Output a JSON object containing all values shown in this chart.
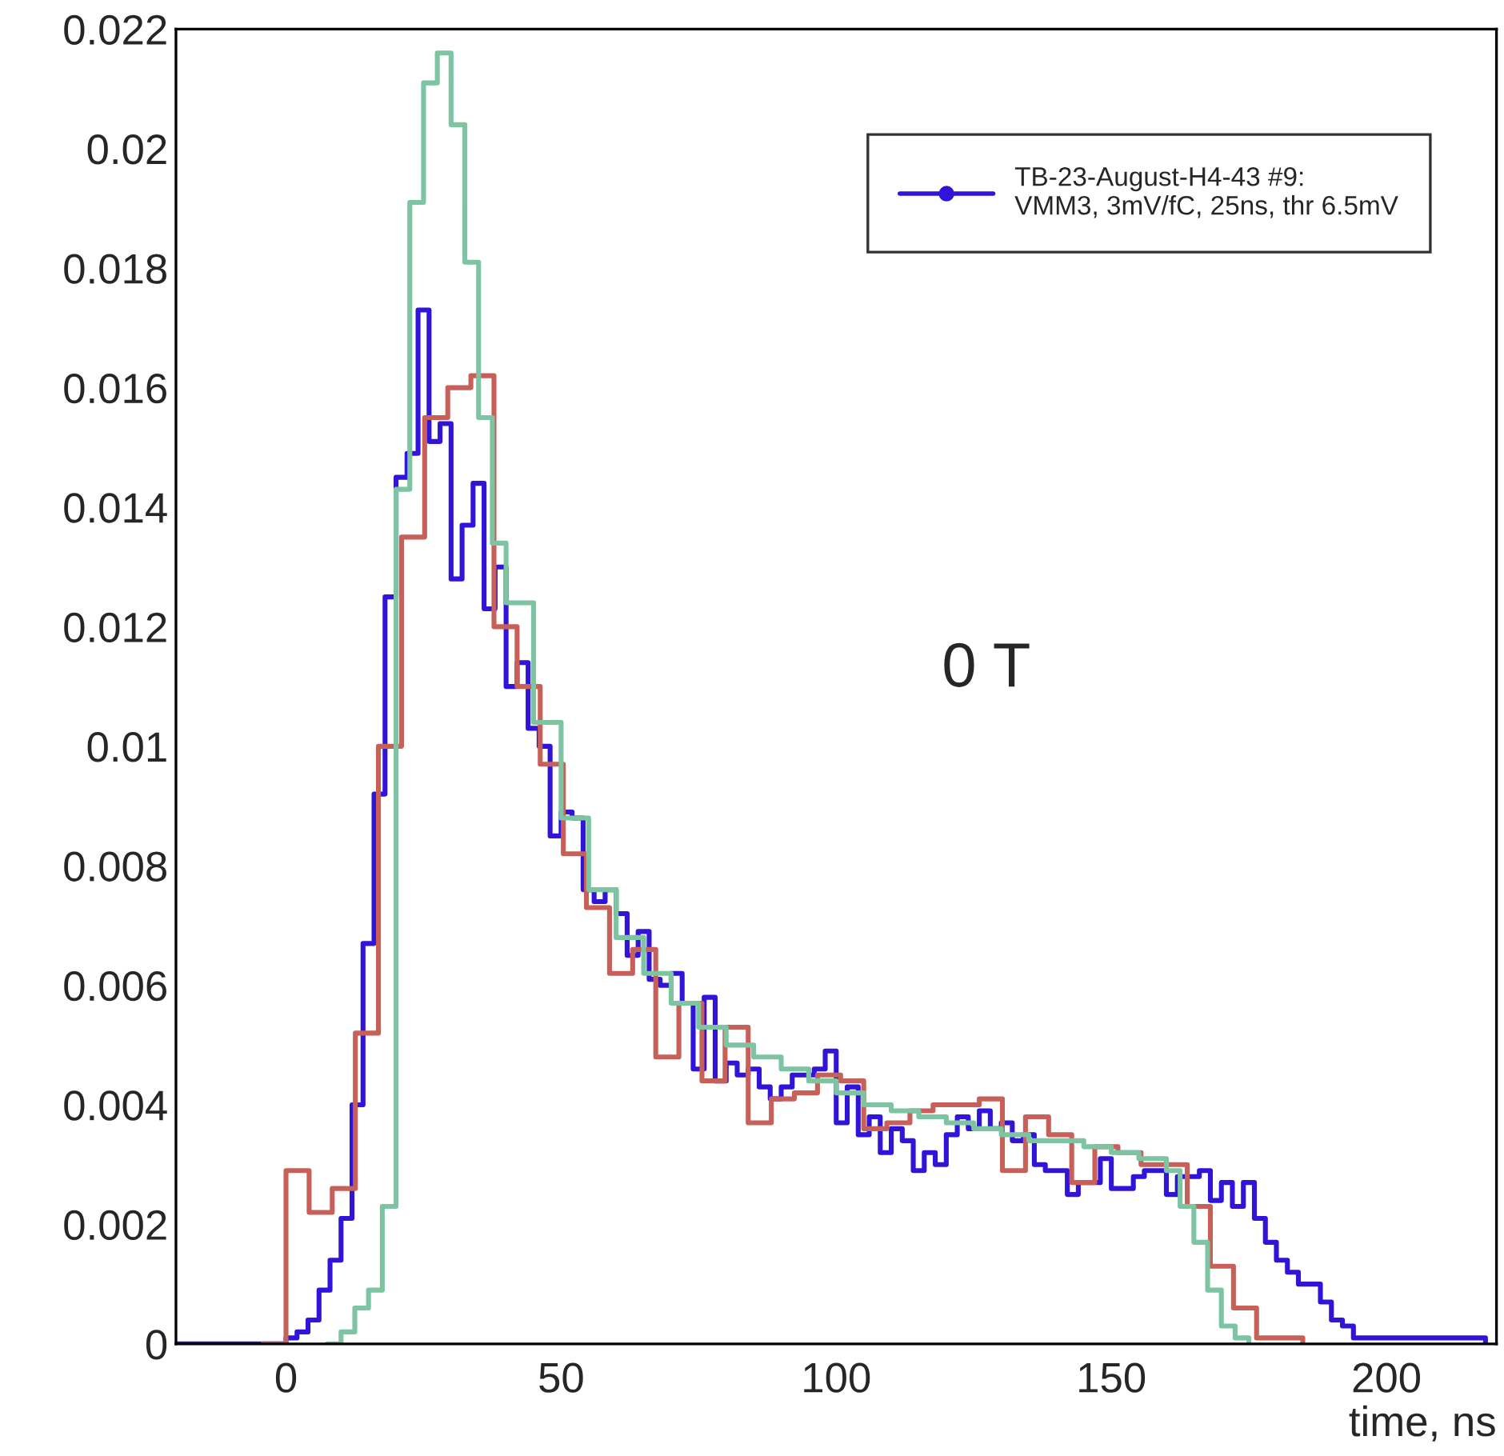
{
  "chart_data": {
    "type": "step",
    "xlabel": "time, ns",
    "annotations": [
      "0 T"
    ],
    "xlim": [
      -20,
      220
    ],
    "xticks": [
      0,
      50,
      100,
      150,
      200
    ],
    "ylim": [
      0,
      0.022
    ],
    "yticks": [
      0,
      0.002,
      0.004,
      0.006,
      0.008,
      0.01,
      0.012,
      0.014,
      0.016,
      0.018,
      0.02,
      0.022
    ],
    "grid": false,
    "legend": "top right",
    "series": [
      {
        "name": "TB-23-August-H4-43 #9:\nVMM3, 3mV/fC, 25ns, thr 6.5mV",
        "color": "#3014d8",
        "x": [
          -20,
          -18,
          -16,
          -14,
          -12,
          -10,
          -8,
          -6,
          -4,
          -2,
          0,
          2,
          4,
          6,
          8,
          10,
          12,
          14,
          16,
          18,
          20,
          22,
          24,
          26,
          28,
          30,
          32,
          34,
          36,
          38,
          40,
          42,
          44,
          46,
          48,
          50,
          52,
          54,
          56,
          58,
          60,
          62,
          64,
          66,
          68,
          70,
          72,
          74,
          76,
          78,
          80,
          82,
          84,
          86,
          88,
          90,
          92,
          94,
          96,
          98,
          100,
          102,
          104,
          106,
          108,
          110,
          112,
          114,
          116,
          118,
          120,
          122,
          124,
          126,
          128,
          130,
          132,
          134,
          136,
          138,
          140,
          142,
          144,
          146,
          148,
          150,
          152,
          154,
          156,
          158,
          160,
          162,
          164,
          166,
          168,
          170,
          172,
          174,
          176,
          178,
          180,
          182,
          184,
          186,
          188,
          190,
          192,
          194,
          196,
          198,
          200,
          202,
          204,
          206,
          208,
          210,
          212,
          214,
          216,
          218
        ],
        "values": [
          0,
          0,
          0,
          0,
          0,
          0,
          0,
          0,
          0,
          0,
          0.0001,
          0.0002,
          0.0004,
          0.0009,
          0.0014,
          0.0021,
          0.004,
          0.0067,
          0.0092,
          0.0125,
          0.0145,
          0.0149,
          0.0173,
          0.0151,
          0.0154,
          0.0128,
          0.0137,
          0.0144,
          0.0123,
          0.013,
          0.011,
          0.0114,
          0.0103,
          0.01,
          0.0085,
          0.0089,
          0.0088,
          0.0076,
          0.0074,
          0.0076,
          0.0072,
          0.0065,
          0.0069,
          0.0061,
          0.006,
          0.0062,
          0.0057,
          0.0046,
          0.0058,
          0.0044,
          0.0047,
          0.0045,
          0.0046,
          0.0043,
          0.0041,
          0.0043,
          0.0045,
          0.0045,
          0.0046,
          0.0049,
          0.0037,
          0.0043,
          0.0035,
          0.0038,
          0.0032,
          0.0036,
          0.0034,
          0.0029,
          0.0032,
          0.003,
          0.0035,
          0.0038,
          0.0036,
          0.0039,
          0.0036,
          0.0037,
          0.0034,
          0.0035,
          0.003,
          0.0029,
          0.0029,
          0.0025,
          0.0027,
          0.0027,
          0.0031,
          0.0026,
          0.0026,
          0.0028,
          0.0029,
          0.0029,
          0.0025,
          0.0028,
          0.0028,
          0.0029,
          0.0024,
          0.0027,
          0.0023,
          0.0027,
          0.0021,
          0.0017,
          0.0014,
          0.0012,
          0.001,
          0.001,
          0.0007,
          0.0004,
          0.0003,
          0.0001,
          0.0001,
          0.0001,
          0.0001,
          0.0001,
          0.0001,
          0.0001,
          0.0001,
          0.0001,
          0.0001,
          0.0001,
          0.0001,
          0
        ]
      },
      {
        "color": "#c8605a",
        "x": [
          -4.2,
          0,
          4.2,
          8.4,
          12.6,
          16.8,
          21,
          25.2,
          29.4,
          33.6,
          37.8,
          42,
          46.2,
          50.4,
          54.6,
          58.8,
          63,
          67.2,
          71.4,
          75.6,
          79.8,
          84,
          88.2,
          92.4,
          96.6,
          100.8,
          105,
          109.2,
          113.4,
          117.6,
          121.8,
          126,
          130.2,
          134.4,
          138.6,
          142.8,
          147,
          151.2,
          155.4,
          159.6,
          163.8,
          168,
          172.2,
          176.4,
          180.6,
          184.8
        ],
        "values": [
          0,
          0.0029,
          0.0022,
          0.0026,
          0.0052,
          0.01,
          0.0135,
          0.0155,
          0.016,
          0.0162,
          0.012,
          0.011,
          0.0097,
          0.0082,
          0.0073,
          0.0062,
          0.0066,
          0.0048,
          0.0057,
          0.0044,
          0.0053,
          0.0037,
          0.0041,
          0.0042,
          0.0045,
          0.0044,
          0.0036,
          0.0037,
          0.0039,
          0.004,
          0.004,
          0.0041,
          0.0029,
          0.0038,
          0.0035,
          0.0027,
          0.0033,
          0.0032,
          0.003,
          0.003,
          0.0023,
          0.0013,
          0.0006,
          0.0001,
          0.0001,
          0
        ]
      },
      {
        "color": "#7cc4a2",
        "x": [
          7.5,
          10,
          12.5,
          15,
          17.5,
          20,
          22.5,
          25,
          27.5,
          30,
          32.5,
          35,
          37.5,
          40,
          45,
          50,
          55,
          60,
          65,
          70,
          75,
          80,
          85,
          90,
          95,
          100,
          105,
          110,
          115,
          120,
          125,
          130,
          135,
          140,
          145,
          150,
          155,
          160,
          162.5,
          165,
          167.5,
          170,
          172.5,
          175
        ],
        "values": [
          0,
          0.0002,
          0.0006,
          0.0009,
          0.0023,
          0.0143,
          0.0191,
          0.0211,
          0.0216,
          0.0204,
          0.0181,
          0.0155,
          0.0134,
          0.0124,
          0.0104,
          0.0088,
          0.0076,
          0.0068,
          0.0062,
          0.0057,
          0.0053,
          0.005,
          0.0048,
          0.0046,
          0.0044,
          0.0042,
          0.004,
          0.0039,
          0.0038,
          0.0037,
          0.0036,
          0.0035,
          0.0034,
          0.0034,
          0.0033,
          0.0032,
          0.0031,
          0.0029,
          0.0023,
          0.0017,
          0.0009,
          0.0003,
          0.0001,
          0
        ]
      }
    ]
  }
}
